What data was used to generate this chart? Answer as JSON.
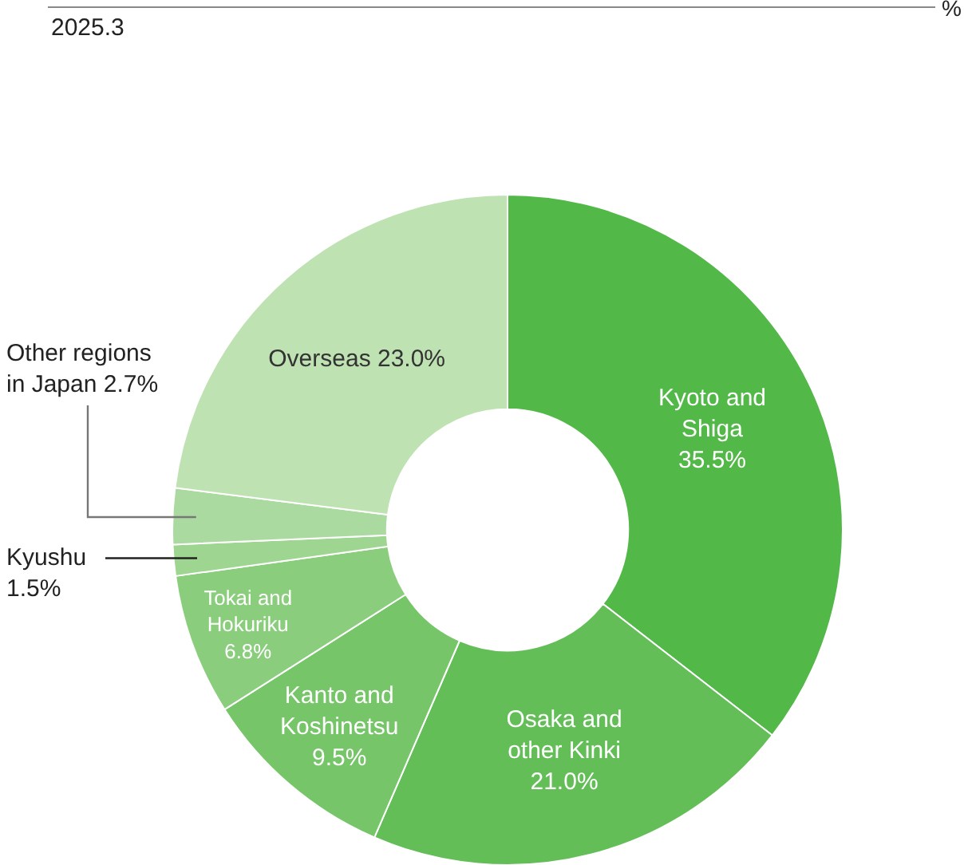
{
  "chart_data": {
    "type": "donut",
    "subtitle": "2025.3",
    "annotations": [
      "%"
    ],
    "categories": [
      "Kyoto and Shiga",
      "Osaka and other Kinki",
      "Kanto and Koshinetsu",
      "Tokai and Hokuriku",
      "Kyushu",
      "Other regions in Japan",
      "Overseas"
    ],
    "values": [
      35.5,
      21.0,
      9.5,
      6.8,
      1.5,
      2.7,
      23.0
    ],
    "value_labels": [
      "35.5%",
      "21.0%",
      "9.5%",
      "6.8%",
      "1.5%",
      "2.7%",
      "23.0%"
    ],
    "colors": [
      "#52b848",
      "#64be58",
      "#76c569",
      "#8ace7d",
      "#9ed591",
      "#abdaa0",
      "#bee2b2"
    ],
    "legend": false
  }
}
